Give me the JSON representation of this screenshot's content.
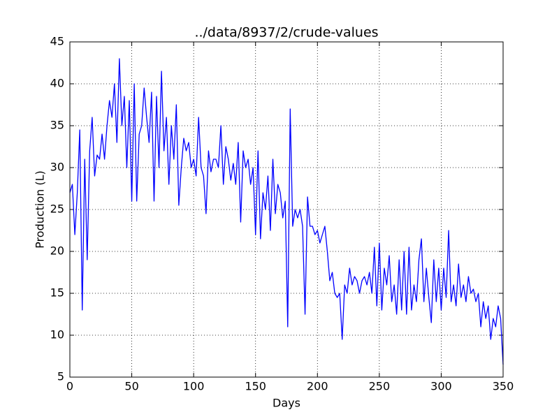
{
  "chart_data": {
    "type": "line",
    "title": "../data/8937/2/crude-values",
    "x_label": "Days",
    "y_label": "Production (L)",
    "x": [
      0,
      2,
      4,
      6,
      8,
      10,
      12,
      14,
      16,
      18,
      20,
      22,
      24,
      26,
      28,
      30,
      32,
      34,
      36,
      38,
      40,
      42,
      44,
      46,
      48,
      50,
      52,
      54,
      56,
      58,
      60,
      62,
      64,
      66,
      68,
      70,
      72,
      74,
      76,
      78,
      80,
      82,
      84,
      86,
      88,
      90,
      92,
      94,
      96,
      98,
      100,
      102,
      104,
      106,
      108,
      110,
      112,
      114,
      116,
      118,
      120,
      122,
      124,
      126,
      128,
      130,
      132,
      134,
      136,
      138,
      140,
      142,
      144,
      146,
      148,
      150,
      152,
      154,
      156,
      158,
      160,
      162,
      164,
      166,
      168,
      170,
      172,
      174,
      176,
      178,
      180,
      182,
      184,
      186,
      188,
      190,
      192,
      194,
      196,
      198,
      200,
      202,
      204,
      206,
      208,
      210,
      212,
      214,
      216,
      218,
      220,
      222,
      224,
      226,
      228,
      230,
      232,
      234,
      236,
      238,
      240,
      242,
      244,
      246,
      248,
      250,
      252,
      254,
      256,
      258,
      260,
      262,
      264,
      266,
      268,
      270,
      272,
      274,
      276,
      278,
      280,
      282,
      284,
      286,
      288,
      290,
      292,
      294,
      296,
      298,
      300,
      302,
      304,
      306,
      308,
      310,
      312,
      314,
      316,
      318,
      320,
      322,
      324,
      326,
      328,
      330,
      332,
      334,
      336,
      338,
      340,
      342,
      344,
      346,
      348,
      350
    ],
    "values": [
      27,
      28,
      22,
      27,
      34.5,
      13,
      31,
      19,
      32,
      36,
      29,
      31.5,
      31,
      34,
      31,
      35,
      38,
      36,
      40,
      33,
      43,
      35,
      38.5,
      30,
      38,
      26,
      40,
      26,
      34,
      35,
      39.5,
      36,
      33,
      39,
      26,
      38.5,
      30,
      41.5,
      32,
      36,
      28,
      35,
      31,
      37.5,
      25.5,
      30,
      33.5,
      32,
      33,
      30,
      31,
      29,
      36,
      30,
      29,
      24.5,
      32,
      29.5,
      31,
      31,
      30,
      35,
      28,
      32.5,
      31,
      28.5,
      30.5,
      28,
      33,
      23.5,
      32,
      30,
      31,
      28,
      30,
      22,
      32,
      21.5,
      27,
      25,
      29,
      22.5,
      31,
      24.5,
      28,
      27,
      24,
      26,
      11,
      37,
      23,
      25,
      24,
      25,
      23,
      12.5,
      26.5,
      23,
      23,
      22,
      22.5,
      21,
      22,
      23,
      20,
      16.5,
      17.5,
      15,
      14.5,
      15,
      9.5,
      16,
      15,
      18,
      16,
      17,
      16.5,
      15,
      16.5,
      17,
      16,
      17.5,
      15,
      20.5,
      13.5,
      21,
      13,
      18,
      16,
      19.5,
      14,
      16,
      12.5,
      19,
      13,
      20,
      12.5,
      20.5,
      13,
      16,
      14,
      19,
      21.5,
      14,
      18,
      14.5,
      11.5,
      19,
      14,
      18,
      13,
      18,
      14.5,
      22.5,
      14,
      16,
      13.5,
      18.5,
      14.5,
      16,
      14,
      17,
      15,
      15.5,
      14,
      15,
      11,
      14,
      12,
      13.5,
      9.5,
      12,
      11,
      13.5,
      12,
      6.5
    ],
    "color": "#0000ff",
    "xlim": [
      0,
      350
    ],
    "ylim": [
      5,
      45
    ],
    "xticks": [
      0,
      50,
      100,
      150,
      200,
      250,
      300,
      350
    ],
    "yticks": [
      5,
      10,
      15,
      20,
      25,
      30,
      35,
      40,
      45
    ],
    "grid": true
  }
}
